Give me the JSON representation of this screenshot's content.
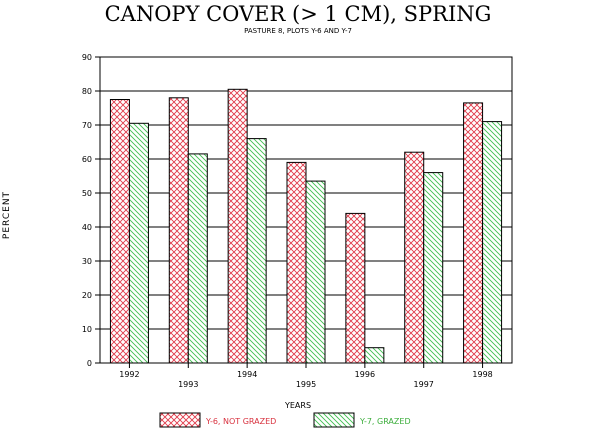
{
  "chart_data": {
    "type": "bar",
    "title": "CANOPY COVER (> 1 CM), SPRING",
    "subtitle": "PASTURE 8, PLOTS Y-6 AND Y-7",
    "xlabel": "YEARS",
    "ylabel": "PERCENT",
    "categories": [
      "1992",
      "1993",
      "1994",
      "1995",
      "1996",
      "1997",
      "1998"
    ],
    "series": [
      {
        "name": "Y-6, NOT GRAZED",
        "values": [
          77.5,
          78.0,
          80.5,
          59.0,
          44.0,
          62.0,
          76.5
        ]
      },
      {
        "name": "Y-7, GRAZED",
        "values": [
          70.5,
          61.5,
          66.0,
          53.5,
          4.5,
          56.0,
          71.0
        ]
      }
    ],
    "ylim": [
      0,
      90
    ],
    "yticks": [
      0,
      10,
      20,
      30,
      40,
      50,
      60,
      70,
      80,
      90
    ],
    "grid": true,
    "legend_position": "bottom"
  },
  "colors": {
    "series_1": "#e03a4a",
    "series_2": "#3fbf4f",
    "axis": "#000000",
    "legend_text_1": "#d8323f",
    "legend_text_2": "#3cae3c"
  }
}
